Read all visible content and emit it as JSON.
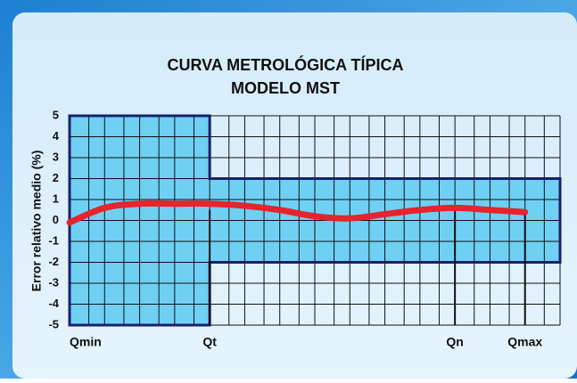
{
  "chart_data": {
    "type": "line",
    "title": [
      "CURVA METROLÓGICA TÍPICA",
      "MODELO MST"
    ],
    "y_label": "Error relativo medio (%)",
    "categories": [
      "Qmin",
      null,
      null,
      null,
      "Qt",
      null,
      null,
      null,
      null,
      null,
      null,
      "Qn",
      null,
      "Qmax",
      null
    ],
    "series": [
      {
        "color": "#e5242c",
        "values": [
          -0.1,
          0.6,
          0.8,
          0.8,
          0.8,
          0.7,
          0.5,
          0.2,
          0.1,
          0.3,
          0.5,
          0.6,
          0.5,
          0.4,
          null
        ]
      }
    ],
    "limits": {
      "low_flow": 5,
      "high_flow": 2,
      "color": "#6fd0f4",
      "border": "#1a1f6e"
    },
    "ylim": [
      -5,
      5
    ],
    "yticks": [
      5,
      4,
      3,
      2,
      1,
      0,
      -1,
      -2,
      -3,
      -4,
      -5
    ],
    "grid": true
  }
}
